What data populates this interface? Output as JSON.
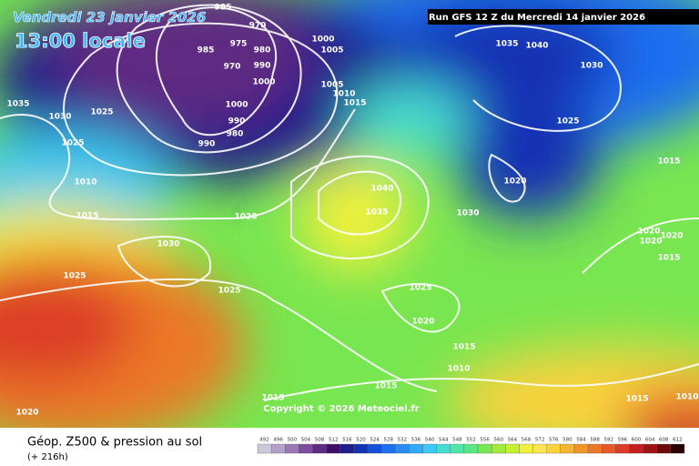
{
  "header": {
    "date": "Vendredi 23 janvier 2026",
    "time": "13:00 locale",
    "run": "Run GFS 12 Z du Mercredi 14 janvier 2026"
  },
  "map": {
    "isobar_labels": [
      985,
      970,
      975,
      985,
      980,
      970,
      990,
      1000,
      1000,
      1005,
      1005,
      1010,
      1015,
      1000,
      990,
      980,
      990,
      1035,
      1030,
      1025,
      1025,
      1010,
      1015,
      1020,
      1030,
      1025,
      1025,
      1040,
      1035,
      1030,
      1020,
      1025,
      1030,
      1035,
      1040,
      1015,
      1020,
      1020,
      1020,
      1015,
      1025,
      1020,
      1015,
      1010,
      1015,
      1015,
      1015,
      1020,
      1010
    ],
    "copyright": "Copyright © 2026 Meteociel.fr"
  },
  "footer": {
    "title": "Géop. Z500 & pression au sol",
    "lead": "(+ 216h)"
  },
  "legend": {
    "values": [
      492,
      496,
      500,
      504,
      508,
      512,
      516,
      520,
      524,
      528,
      532,
      536,
      540,
      544,
      548,
      552,
      556,
      560,
      564,
      568,
      572,
      576,
      580,
      584,
      588,
      592,
      596,
      600,
      604,
      608,
      612
    ],
    "colors": [
      "#c8c8d8",
      "#b4a0c8",
      "#9a78b4",
      "#7d4c9c",
      "#5f2a82",
      "#3c0f6a",
      "#1e1e8c",
      "#1432b4",
      "#1450dc",
      "#1e6ef0",
      "#288cf5",
      "#32aaf5",
      "#3cc8f0",
      "#46dcd2",
      "#50e6aa",
      "#5ae682",
      "#78e650",
      "#a0eb3c",
      "#c8f032",
      "#f0f03c",
      "#fae650",
      "#fad23c",
      "#f5b432",
      "#f09628",
      "#eb7828",
      "#e65a28",
      "#dc3c28",
      "#c81e1e",
      "#a01414",
      "#6e0a0a",
      "#280000"
    ]
  }
}
